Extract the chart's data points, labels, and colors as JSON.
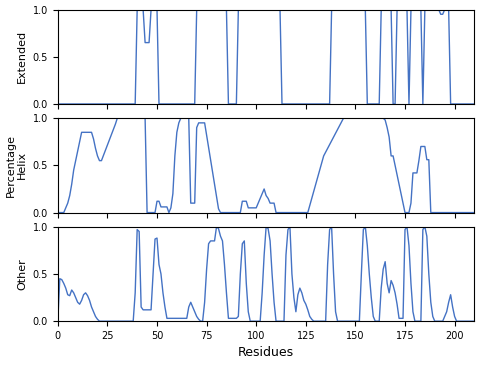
{
  "title": "",
  "xlabel": "Residues",
  "ylabels": [
    "Extended",
    "Percentage\nHelix",
    "Other"
  ],
  "xlim": [
    0,
    210
  ],
  "ylim": [
    0.0,
    1.0
  ],
  "xticks": [
    0,
    25,
    50,
    75,
    100,
    125,
    150,
    175,
    200
  ],
  "yticks": [
    0.0,
    0.5,
    1.0
  ],
  "line_color": "#4472C4",
  "line_width": 1.0,
  "n_residues": 211
}
